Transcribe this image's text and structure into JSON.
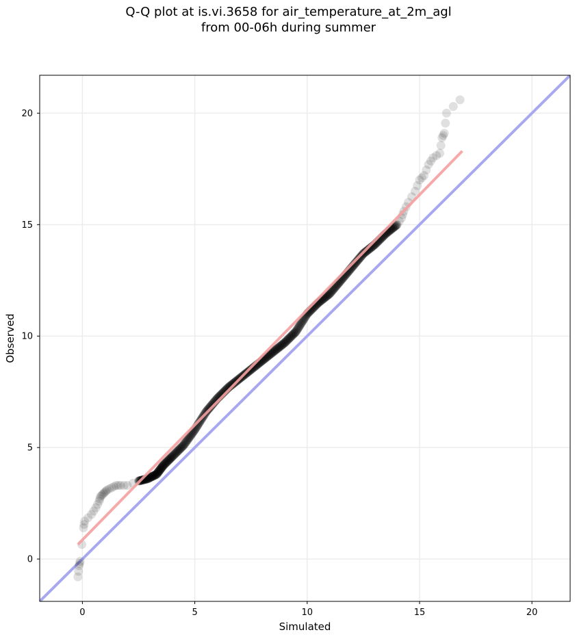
{
  "chart_data": {
    "type": "scatter",
    "title": "Q-Q plot at is.vi.3658 for air_temperature_at_2m_agl",
    "subtitle": "from 00-06h during summer",
    "xlabel": "Simulated",
    "ylabel": "Observed",
    "xlim": [
      -1.9,
      21.7
    ],
    "ylim": [
      -1.9,
      21.7
    ],
    "xticks": [
      0,
      5,
      10,
      15,
      20
    ],
    "yticks": [
      0,
      5,
      10,
      15,
      20
    ],
    "xtick_labels": [
      "0",
      "5",
      "10",
      "15",
      "20"
    ],
    "ytick_labels": [
      "0",
      "5",
      "10",
      "15",
      "20"
    ],
    "grid": true,
    "legend": "none",
    "quantiles": {
      "simulated": [
        -0.2,
        -0.15,
        -0.1,
        0.05,
        0.1,
        0.4,
        0.6,
        0.75,
        0.8,
        0.9,
        1.0,
        1.1,
        1.3,
        1.5,
        1.7,
        2.0,
        2.5,
        2.9,
        3.3,
        3.6,
        4.0,
        4.5,
        5.0,
        5.5,
        6.0,
        6.5,
        7.0,
        7.5,
        8.0,
        8.5,
        9.0,
        9.5,
        10.0,
        10.5,
        11.0,
        11.5,
        12.0,
        12.5,
        13.0,
        13.5,
        14.0,
        14.2,
        14.3,
        14.5,
        14.8,
        15.0,
        15.2,
        15.4,
        15.6,
        15.9,
        16.0,
        16.1,
        16.2,
        16.8
      ],
      "observed": [
        -0.8,
        -0.3,
        -0.1,
        1.4,
        1.7,
        2.0,
        2.3,
        2.6,
        2.8,
        2.9,
        3.0,
        3.1,
        3.2,
        3.3,
        3.3,
        3.3,
        3.5,
        3.6,
        3.8,
        4.2,
        4.6,
        5.1,
        5.8,
        6.6,
        7.2,
        7.7,
        8.1,
        8.5,
        8.9,
        9.3,
        9.7,
        10.2,
        11.0,
        11.5,
        11.9,
        12.5,
        13.1,
        13.7,
        14.1,
        14.6,
        15.0,
        15.3,
        15.6,
        16.0,
        16.5,
        17.0,
        17.2,
        17.7,
        18.0,
        18.2,
        18.9,
        19.1,
        20.0,
        20.6
      ]
    },
    "fit_line": {
      "x": [
        -0.2,
        16.9
      ],
      "y": [
        0.65,
        18.3
      ],
      "color": "#f4a0a0"
    },
    "reference_line": {
      "slope": 1,
      "intercept": 0,
      "color": "#a8a8f0"
    },
    "point_color": "#000000"
  }
}
